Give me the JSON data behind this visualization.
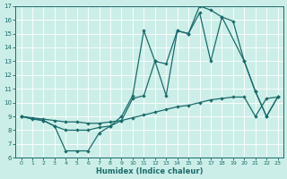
{
  "xlabel": "Humidex (Indice chaleur)",
  "bg_color": "#cceee8",
  "line_color": "#1a6b6b",
  "grid_color": "#aadddd",
  "xlim": [
    -0.5,
    23.5
  ],
  "ylim": [
    6,
    17
  ],
  "yticks": [
    6,
    7,
    8,
    9,
    10,
    11,
    12,
    13,
    14,
    15,
    16,
    17
  ],
  "xticks": [
    0,
    1,
    2,
    3,
    4,
    5,
    6,
    7,
    8,
    9,
    10,
    11,
    12,
    13,
    14,
    15,
    16,
    17,
    18,
    19,
    20,
    21,
    22,
    23
  ],
  "line1_x": [
    0,
    1,
    2,
    3,
    4,
    5,
    6,
    7,
    8,
    9,
    10,
    11,
    12,
    13,
    14,
    15,
    16,
    17,
    18,
    20,
    21,
    22,
    23
  ],
  "line1_y": [
    9,
    8.8,
    8.7,
    8.3,
    6.5,
    6.5,
    6.5,
    7.8,
    8.3,
    9.0,
    10.5,
    15.2,
    13.0,
    10.5,
    15.2,
    15.0,
    17.0,
    16.7,
    16.2,
    13.0,
    10.8,
    9.0,
    10.4
  ],
  "line2_x": [
    0,
    2,
    3,
    4,
    5,
    6,
    7,
    8,
    9,
    10,
    11,
    12,
    13,
    14,
    15,
    16,
    17,
    18,
    19,
    20,
    21,
    22,
    23
  ],
  "line2_y": [
    9,
    8.7,
    8.3,
    8.0,
    8.0,
    8.0,
    8.2,
    8.3,
    8.7,
    10.3,
    10.5,
    13.0,
    12.8,
    15.2,
    15.0,
    16.5,
    13.0,
    16.2,
    15.9,
    13.0,
    10.8,
    9.0,
    10.4
  ],
  "line3_x": [
    0,
    1,
    2,
    3,
    4,
    5,
    6,
    7,
    8,
    9,
    10,
    11,
    12,
    13,
    14,
    15,
    16,
    17,
    18,
    19,
    20,
    21,
    22,
    23
  ],
  "line3_y": [
    9,
    8.9,
    8.8,
    8.7,
    8.6,
    8.6,
    8.5,
    8.5,
    8.6,
    8.7,
    8.9,
    9.1,
    9.3,
    9.5,
    9.7,
    9.8,
    10.0,
    10.2,
    10.3,
    10.4,
    10.4,
    9.0,
    10.3,
    10.4
  ]
}
